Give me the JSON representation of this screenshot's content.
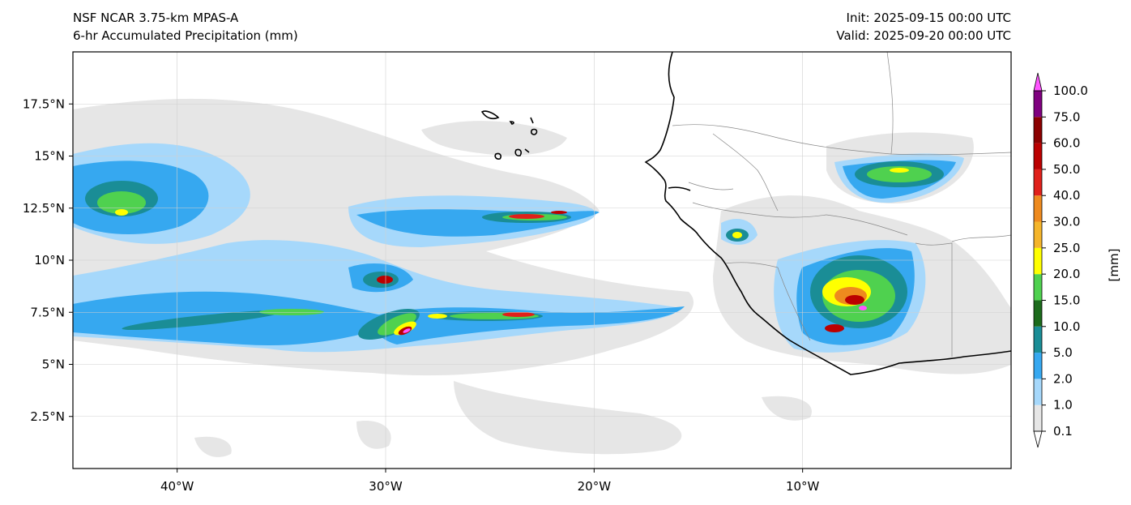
{
  "header": {
    "title_line1": "NSF NCAR 3.75-km MPAS-A",
    "title_line2": "6-hr Accumulated Precipitation (mm)",
    "init": "Init: 2025-09-15 00:00 UTC",
    "valid": "Valid: 2025-09-20 00:00 UTC"
  },
  "axes": {
    "lat_ticks": [
      {
        "value": 17.5,
        "label": "17.5°N"
      },
      {
        "value": 15,
        "label": "15°N"
      },
      {
        "value": 12.5,
        "label": "12.5°N"
      },
      {
        "value": 10,
        "label": "10°N"
      },
      {
        "value": 7.5,
        "label": "7.5°N"
      },
      {
        "value": 5,
        "label": "5°N"
      },
      {
        "value": 2.5,
        "label": "2.5°N"
      }
    ],
    "lon_ticks": [
      {
        "value": -40,
        "label": "40°W"
      },
      {
        "value": -30,
        "label": "30°W"
      },
      {
        "value": -20,
        "label": "20°W"
      },
      {
        "value": -10,
        "label": "10°W"
      }
    ],
    "lon_range": [
      -45,
      0
    ],
    "lat_range": [
      0,
      20
    ],
    "grid": true
  },
  "colorbar": {
    "unit": "[mm]",
    "levels": [
      "0.1",
      "1.0",
      "2.0",
      "5.0",
      "10.0",
      "15.0",
      "20.0",
      "25.0",
      "30.0",
      "40.0",
      "50.0",
      "60.0",
      "75.0",
      "100.0"
    ],
    "colors": [
      "#e6e6e6",
      "#a6d8fb",
      "#36a8f0",
      "#1a8d96",
      "#1c6b1c",
      "#4fd14f",
      "#ffff00",
      "#f5b52a",
      "#ee8a1e",
      "#e0201a",
      "#bb0000",
      "#8b0000",
      "#7f007f",
      "#ff55ff"
    ],
    "extend_colors": {
      "low": "#ffffff",
      "high": "#ffc8ff"
    }
  },
  "colors": {
    "coast": "#000000",
    "borders": "#888888",
    "grid": "#d0d0d0"
  },
  "features": [
    {
      "name": "Cabo Verde Islands",
      "lon": -24.0,
      "lat": 16.0
    },
    {
      "name": "West Africa coast",
      "lon": -15.0,
      "lat": 12.0
    }
  ]
}
